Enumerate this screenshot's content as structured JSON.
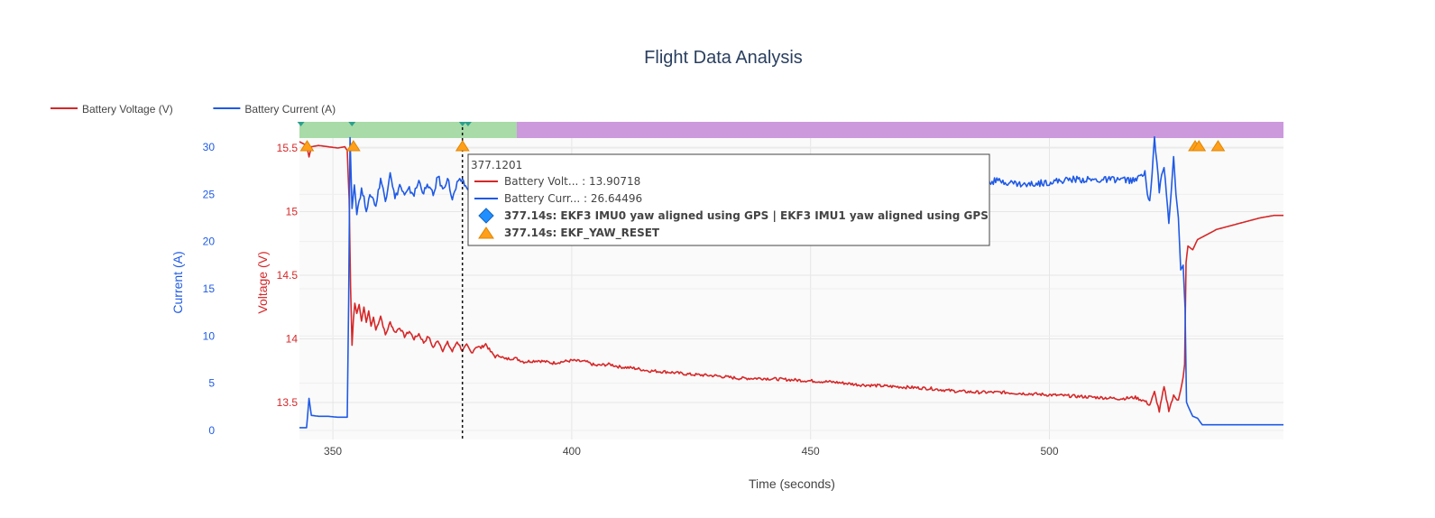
{
  "chart_data": {
    "type": "line",
    "title": "Flight Data Analysis",
    "xlabel": "Time (seconds)",
    "xlim": [
      343,
      549
    ],
    "x_ticks": [
      350,
      400,
      450,
      500
    ],
    "y_voltage": {
      "label": "Voltage (V)",
      "lim": [
        13.3,
        15.6
      ],
      "ticks": [
        13.5,
        14,
        14.5,
        15,
        15.5
      ],
      "tick_labels": [
        "13.5",
        "14",
        "14.5",
        "15",
        "15.5"
      ],
      "color": "#d62728"
    },
    "y_current": {
      "label": "Current (A)",
      "lim": [
        -0.5,
        31
      ],
      "ticks": [
        0,
        5,
        10,
        15,
        20,
        25,
        30
      ],
      "tick_labels": [
        "0",
        "5",
        "10",
        "15",
        "20",
        "25",
        "30"
      ],
      "color": "#1f5ae6"
    },
    "legend": {
      "placement": "top-left",
      "entries": [
        {
          "name": "Battery Voltage (V)",
          "color": "#d62728"
        },
        {
          "name": "Battery Current (A)",
          "color": "#1f5ae6"
        }
      ]
    },
    "series": [
      {
        "name": "Battery Voltage (V)",
        "axis": "voltage",
        "color": "#d62728",
        "points": [
          [
            343,
            15.55
          ],
          [
            344.5,
            15.52
          ],
          [
            345,
            15.43
          ],
          [
            345.5,
            15.51
          ],
          [
            347,
            15.52
          ],
          [
            349,
            15.51
          ],
          [
            351,
            15.5
          ],
          [
            352.5,
            15.51
          ],
          [
            353,
            15.48
          ],
          [
            353.4,
            15.1
          ],
          [
            353.7,
            14.4
          ],
          [
            354,
            13.95
          ],
          [
            354.3,
            14.15
          ],
          [
            354.6,
            14.28
          ],
          [
            355,
            14.2
          ],
          [
            355.5,
            14.27
          ],
          [
            356,
            14.14
          ],
          [
            356.5,
            14.25
          ],
          [
            357,
            14.13
          ],
          [
            357.5,
            14.22
          ],
          [
            358,
            14.1
          ],
          [
            358.5,
            14.17
          ],
          [
            359,
            14.07
          ],
          [
            360,
            14.18
          ],
          [
            361,
            14.03
          ],
          [
            362,
            14.13
          ],
          [
            363,
            14.05
          ],
          [
            364,
            14.09
          ],
          [
            365,
            14.02
          ],
          [
            366,
            14.06
          ],
          [
            367,
            14
          ],
          [
            368,
            14.04
          ],
          [
            369,
            13.97
          ],
          [
            370,
            14.02
          ],
          [
            371,
            13.93
          ],
          [
            372,
            13.99
          ],
          [
            373,
            13.91
          ],
          [
            374,
            13.97
          ],
          [
            375,
            13.9
          ],
          [
            376,
            13.98
          ],
          [
            377.12,
            13.907
          ],
          [
            378,
            13.95
          ],
          [
            379,
            13.89
          ],
          [
            380,
            13.94
          ],
          [
            381,
            13.93
          ],
          [
            382,
            13.96
          ],
          [
            383,
            13.9
          ],
          [
            384,
            13.86
          ],
          [
            385,
            13.87
          ],
          [
            386,
            13.84
          ],
          [
            388,
            13.85
          ],
          [
            390,
            13.82
          ],
          [
            393,
            13.83
          ],
          [
            396,
            13.81
          ],
          [
            400,
            13.83
          ],
          [
            403,
            13.82
          ],
          [
            405,
            13.79
          ],
          [
            408,
            13.8
          ],
          [
            410,
            13.78
          ],
          [
            413,
            13.77
          ],
          [
            416,
            13.75
          ],
          [
            420,
            13.74
          ],
          [
            425,
            13.72
          ],
          [
            430,
            13.71
          ],
          [
            435,
            13.69
          ],
          [
            440,
            13.69
          ],
          [
            445,
            13.68
          ],
          [
            450,
            13.67
          ],
          [
            455,
            13.66
          ],
          [
            460,
            13.64
          ],
          [
            465,
            13.63
          ],
          [
            470,
            13.62
          ],
          [
            475,
            13.61
          ],
          [
            480,
            13.59
          ],
          [
            485,
            13.58
          ],
          [
            490,
            13.58
          ],
          [
            495,
            13.57
          ],
          [
            500,
            13.56
          ],
          [
            505,
            13.55
          ],
          [
            510,
            13.54
          ],
          [
            515,
            13.53
          ],
          [
            518,
            13.54
          ],
          [
            520,
            13.51
          ],
          [
            521,
            13.48
          ],
          [
            522,
            13.58
          ],
          [
            523,
            13.43
          ],
          [
            524,
            13.62
          ],
          [
            525,
            13.44
          ],
          [
            526,
            13.55
          ],
          [
            527,
            13.52
          ],
          [
            527.5,
            13.6
          ],
          [
            528,
            13.7
          ],
          [
            528.3,
            13.8
          ],
          [
            528.6,
            14.6
          ],
          [
            529,
            14.73
          ],
          [
            530,
            14.7
          ],
          [
            531,
            14.78
          ],
          [
            532,
            14.8
          ],
          [
            533,
            14.82
          ],
          [
            535,
            14.86
          ],
          [
            538,
            14.89
          ],
          [
            541,
            14.92
          ],
          [
            544,
            14.95
          ],
          [
            547,
            14.97
          ],
          [
            549,
            14.97
          ]
        ]
      },
      {
        "name": "Battery Current (A)",
        "axis": "current",
        "color": "#1f5ae6",
        "points": [
          [
            343,
            0.3
          ],
          [
            344.5,
            0.3
          ],
          [
            345,
            3.4
          ],
          [
            345.5,
            1.6
          ],
          [
            347,
            1.5
          ],
          [
            349,
            1.5
          ],
          [
            351,
            1.4
          ],
          [
            352.5,
            1.4
          ],
          [
            353,
            1.4
          ],
          [
            353.3,
            14
          ],
          [
            353.6,
            31
          ],
          [
            354,
            23.5
          ],
          [
            354.5,
            26
          ],
          [
            355,
            23.2
          ],
          [
            356,
            25.5
          ],
          [
            357,
            23.5
          ],
          [
            358,
            25
          ],
          [
            359,
            23.8
          ],
          [
            360,
            26.7
          ],
          [
            361,
            24.3
          ],
          [
            362,
            27.5
          ],
          [
            363,
            24.5
          ],
          [
            364,
            26
          ],
          [
            365,
            24.8
          ],
          [
            366,
            25.5
          ],
          [
            367,
            25
          ],
          [
            368,
            26.4
          ],
          [
            369,
            25.2
          ],
          [
            370,
            26
          ],
          [
            371,
            24.8
          ],
          [
            372,
            27
          ],
          [
            373,
            25.4
          ],
          [
            374,
            26.8
          ],
          [
            375,
            24.4
          ],
          [
            376,
            26
          ],
          [
            377.12,
            26.645
          ],
          [
            378,
            25.5
          ],
          [
            379,
            26.5
          ],
          [
            381,
            26.2
          ],
          [
            383,
            26.5
          ],
          [
            487,
            26.4
          ],
          [
            490,
            26.4
          ],
          [
            495,
            26
          ],
          [
            500,
            26.3
          ],
          [
            505,
            26.6
          ],
          [
            510,
            26.5
          ],
          [
            515,
            26.6
          ],
          [
            518,
            26.4
          ],
          [
            520,
            27.5
          ],
          [
            520.5,
            25
          ],
          [
            521,
            24
          ],
          [
            522,
            31
          ],
          [
            523,
            25.5
          ],
          [
            524,
            28
          ],
          [
            525,
            22
          ],
          [
            526,
            29
          ],
          [
            526.5,
            25
          ],
          [
            527,
            22.5
          ],
          [
            527.5,
            17
          ],
          [
            528,
            17.5
          ],
          [
            528.4,
            13
          ],
          [
            528.7,
            3
          ],
          [
            529,
            2.6
          ],
          [
            530,
            1.5
          ],
          [
            531,
            1.3
          ],
          [
            532,
            0.6
          ],
          [
            535,
            0.6
          ],
          [
            540,
            0.6
          ],
          [
            545,
            0.6
          ],
          [
            549,
            0.6
          ]
        ]
      }
    ],
    "mode_bands": [
      {
        "x0": 343,
        "x1": 388.5,
        "color": "#a8dba8"
      },
      {
        "x0": 388.5,
        "x1": 549,
        "color": "#cc99dd"
      }
    ],
    "event_markers": {
      "triangle_times": [
        344.6,
        354.3,
        377.14,
        530.5,
        531.3,
        535.3
      ],
      "triangle_color": "#ff9f1a",
      "mode_marker_times": [
        343.3,
        354,
        377.14,
        378.3
      ],
      "mode_marker_color": "#2ca08c"
    },
    "hover": {
      "x_value": "377.1201",
      "x": 377.12,
      "lines": [
        {
          "kind": "line",
          "color": "#d62728",
          "text": "Battery Volt... : 13.90718"
        },
        {
          "kind": "line",
          "color": "#1f5ae6",
          "text": "Battery Curr... : 26.64496"
        },
        {
          "kind": "diamond",
          "color": "#1f8fff",
          "text": "377.14s: EKF3 IMU0 yaw aligned using GPS | EKF3 IMU1 yaw aligned using GPS"
        },
        {
          "kind": "triangle",
          "color": "#ff9f1a",
          "text": "377.14s: EKF_YAW_RESET"
        }
      ]
    }
  }
}
